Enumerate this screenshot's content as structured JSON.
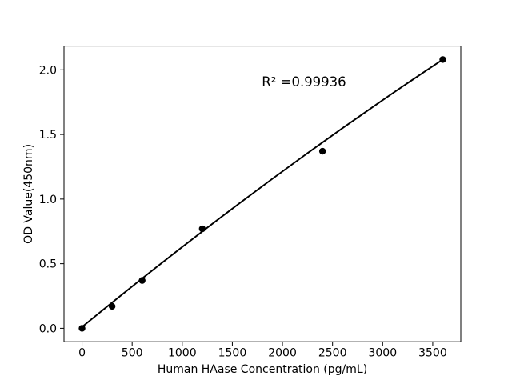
{
  "chart_data": {
    "type": "scatter",
    "title": "",
    "xlabel": "Human HAase Concentration (pg/mL)",
    "ylabel": "OD Value(450nm)",
    "annotation": "R² =0.99936",
    "r_squared": 0.99936,
    "x": [
      0,
      300,
      600,
      1200,
      2400,
      3600
    ],
    "y": [
      0.0,
      0.17,
      0.37,
      0.77,
      1.37,
      2.08
    ],
    "fit_line": {
      "type": "quadratic-fit",
      "points": [
        [
          0,
          0.01
        ],
        [
          1800,
          1.1
        ],
        [
          3600,
          2.08
        ]
      ]
    },
    "xticks": [
      0,
      500,
      1000,
      1500,
      2000,
      2500,
      3000,
      3500
    ],
    "yticks": [
      0.0,
      0.5,
      1.0,
      1.5,
      2.0
    ],
    "xlim": [
      -180,
      3780
    ],
    "ylim": [
      -0.104,
      2.184
    ],
    "grid": false,
    "legend_position": "none",
    "marker_color": "#000000",
    "line_color": "#000000",
    "frame_color": "#000000",
    "background": "#ffffff"
  }
}
